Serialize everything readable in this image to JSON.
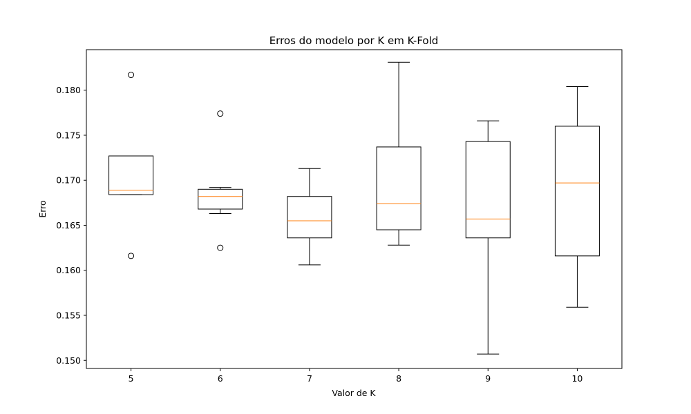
{
  "chart_data": {
    "type": "boxplot",
    "title": "Erros do modelo por K em K-Fold",
    "xlabel": "Valor de K",
    "ylabel": "Erro",
    "ylim": [
      0.1491,
      0.8444
    ],
    "ylim_note": "",
    "y_range": [
      0.1491,
      0.1845
    ],
    "y_ticks": [
      "0.150",
      "0.155",
      "0.160",
      "0.165",
      "0.170",
      "0.175",
      "0.180"
    ],
    "y_tick_values": [
      0.15,
      0.155,
      0.16,
      0.165,
      0.17,
      0.175,
      0.18
    ],
    "categories": [
      "5",
      "6",
      "7",
      "8",
      "9",
      "10"
    ],
    "grid": false,
    "colors": {
      "box": "#000000",
      "median": "#ff7f0e",
      "axes": "#000000"
    },
    "boxes": [
      {
        "k": "5",
        "whisker_low": 0.1684,
        "q1": 0.1684,
        "median": 0.1689,
        "q3": 0.1727,
        "whisker_high": 0.1727,
        "outliers": [
          0.1817,
          0.1616
        ]
      },
      {
        "k": "6",
        "whisker_low": 0.1663,
        "q1": 0.1668,
        "median": 0.1682,
        "q3": 0.169,
        "whisker_high": 0.1692,
        "outliers": [
          0.1774,
          0.1625
        ]
      },
      {
        "k": "7",
        "whisker_low": 0.1606,
        "q1": 0.1636,
        "median": 0.1655,
        "q3": 0.1682,
        "whisker_high": 0.1713,
        "outliers": []
      },
      {
        "k": "8",
        "whisker_low": 0.1628,
        "q1": 0.1645,
        "median": 0.1674,
        "q3": 0.1737,
        "whisker_high": 0.1831,
        "outliers": []
      },
      {
        "k": "9",
        "whisker_low": 0.1507,
        "q1": 0.1636,
        "median": 0.1657,
        "q3": 0.1743,
        "whisker_high": 0.1766,
        "outliers": []
      },
      {
        "k": "10",
        "whisker_low": 0.1559,
        "q1": 0.1616,
        "median": 0.1697,
        "q3": 0.176,
        "whisker_high": 0.1804,
        "outliers": []
      }
    ]
  }
}
